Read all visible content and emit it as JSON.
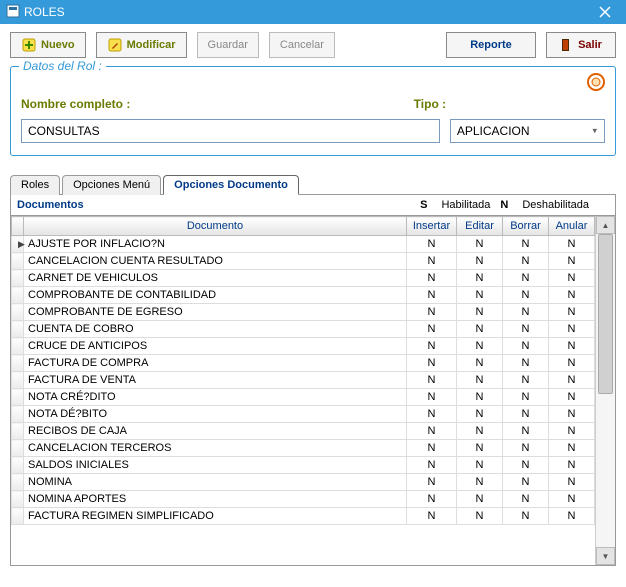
{
  "window": {
    "title": "ROLES"
  },
  "toolbar": {
    "nuevo": "Nuevo",
    "modificar": "Modificar",
    "guardar": "Guardar",
    "cancelar": "Cancelar",
    "reporte": "Reporte",
    "salir": "Salir"
  },
  "group": {
    "title": "Datos del Rol :",
    "nombre_label": "Nombre completo :",
    "tipo_label": "Tipo :",
    "nombre_value": "CONSULTAS",
    "tipo_value": "APLICACION"
  },
  "tabs": {
    "roles": "Roles",
    "opciones_menu": "Opciones Menú",
    "opciones_doc": "Opciones Documento"
  },
  "docheader": {
    "title": "Documentos",
    "s": "S",
    "hab": "Habilitada",
    "n": "N",
    "deshab": "Deshabilitada"
  },
  "columns": {
    "documento": "Documento",
    "insertar": "Insertar",
    "editar": "Editar",
    "borrar": "Borrar",
    "anular": "Anular"
  },
  "rows": [
    {
      "doc": "AJUSTE POR INFLACIO?N",
      "i": "N",
      "e": "N",
      "b": "N",
      "a": "N"
    },
    {
      "doc": "CANCELACION CUENTA RESULTADO",
      "i": "N",
      "e": "N",
      "b": "N",
      "a": "N"
    },
    {
      "doc": "CARNET DE VEHICULOS",
      "i": "N",
      "e": "N",
      "b": "N",
      "a": "N"
    },
    {
      "doc": "COMPROBANTE DE CONTABILIDAD",
      "i": "N",
      "e": "N",
      "b": "N",
      "a": "N"
    },
    {
      "doc": "COMPROBANTE DE EGRESO",
      "i": "N",
      "e": "N",
      "b": "N",
      "a": "N"
    },
    {
      "doc": "CUENTA DE COBRO",
      "i": "N",
      "e": "N",
      "b": "N",
      "a": "N"
    },
    {
      "doc": "CRUCE DE ANTICIPOS",
      "i": "N",
      "e": "N",
      "b": "N",
      "a": "N"
    },
    {
      "doc": "FACTURA DE COMPRA",
      "i": "N",
      "e": "N",
      "b": "N",
      "a": "N"
    },
    {
      "doc": "FACTURA DE VENTA",
      "i": "N",
      "e": "N",
      "b": "N",
      "a": "N"
    },
    {
      "doc": "NOTA CRÉ?DITO",
      "i": "N",
      "e": "N",
      "b": "N",
      "a": "N"
    },
    {
      "doc": "NOTA DÉ?BITO",
      "i": "N",
      "e": "N",
      "b": "N",
      "a": "N"
    },
    {
      "doc": "RECIBOS DE CAJA",
      "i": "N",
      "e": "N",
      "b": "N",
      "a": "N"
    },
    {
      "doc": "CANCELACION TERCEROS",
      "i": "N",
      "e": "N",
      "b": "N",
      "a": "N"
    },
    {
      "doc": "SALDOS INICIALES",
      "i": "N",
      "e": "N",
      "b": "N",
      "a": "N"
    },
    {
      "doc": "NOMINA",
      "i": "N",
      "e": "N",
      "b": "N",
      "a": "N"
    },
    {
      "doc": "NOMINA APORTES",
      "i": "N",
      "e": "N",
      "b": "N",
      "a": "N"
    },
    {
      "doc": "FACTURA REGIMEN SIMPLIFICADO",
      "i": "N",
      "e": "N",
      "b": "N",
      "a": "N"
    }
  ],
  "colors": {
    "accent": "#349ad9",
    "olive": "#6b7a00",
    "navy": "#003a88"
  }
}
